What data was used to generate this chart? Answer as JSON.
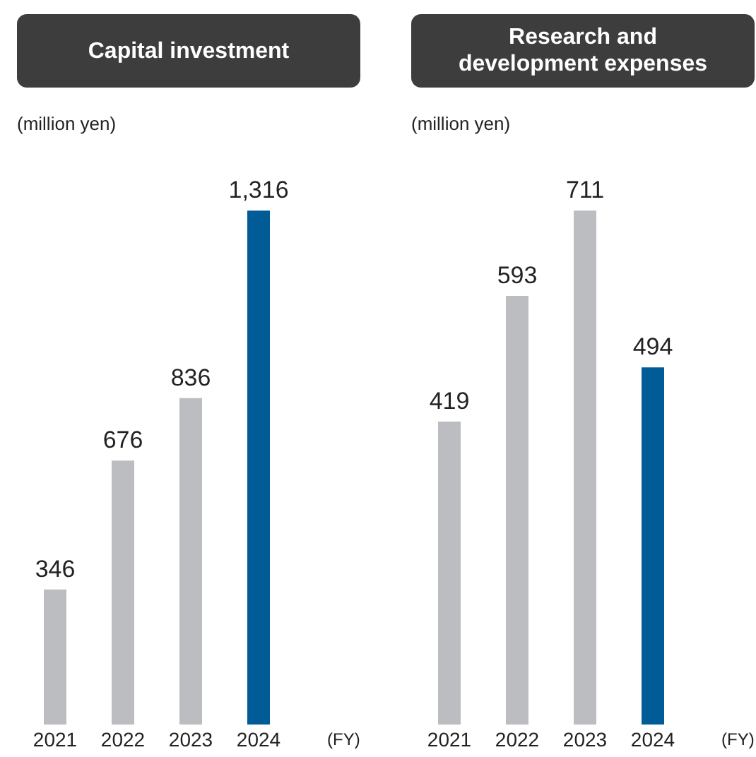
{
  "chart_data": [
    {
      "type": "bar",
      "title": "Capital investment",
      "ylabel": "(million yen)",
      "xlabel": "(FY)",
      "categories": [
        "2021",
        "2022",
        "2023",
        "2024"
      ],
      "values": [
        346,
        676,
        836,
        1316
      ],
      "colors": [
        "#bcbdc0",
        "#bcbdc0",
        "#bcbdc0",
        "#005b96"
      ],
      "value_labels": [
        "346",
        "676",
        "836",
        "1,316"
      ]
    },
    {
      "type": "bar",
      "title": "Research and development expenses",
      "ylabel": "(million yen)",
      "xlabel": "(FY)",
      "categories": [
        "2021",
        "2022",
        "2023",
        "2024"
      ],
      "values": [
        419,
        593,
        711,
        494
      ],
      "colors": [
        "#bcbdc0",
        "#bcbdc0",
        "#bcbdc0",
        "#005b96"
      ],
      "value_labels": [
        "419",
        "593",
        "711",
        "494"
      ]
    }
  ]
}
